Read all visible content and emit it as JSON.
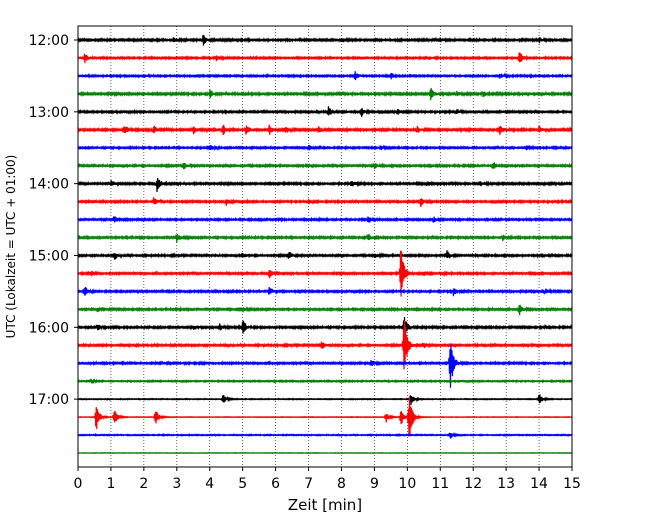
{
  "chart_data": {
    "type": "line",
    "title": "",
    "xlabel": "Zeit  [min]",
    "ylabel": "UTC (Lokalzeit = UTC + 01:00)",
    "xlim": [
      0,
      15
    ],
    "x_ticks": [
      0,
      1,
      2,
      3,
      4,
      5,
      6,
      7,
      8,
      9,
      10,
      11,
      12,
      13,
      14,
      15
    ],
    "x_tick_labels": [
      "0",
      "1",
      "2",
      "3",
      "4",
      "5",
      "6",
      "7",
      "8",
      "9",
      "10",
      "11",
      "12",
      "13",
      "14",
      "15"
    ],
    "y_tick_labels": [
      "12:00",
      "13:00",
      "14:00",
      "15:00",
      "16:00",
      "17:00"
    ],
    "grid": "vertical-dotted",
    "colors": [
      "#000000",
      "#ff0000",
      "#0000ff",
      "#008000"
    ],
    "traces": [
      {
        "start": "12:00",
        "color": "#000000",
        "noise": 0.32,
        "events": [
          [
            2.9,
            1.2
          ],
          [
            3.8,
            2.2
          ],
          [
            8.0,
            1.0
          ],
          [
            11.0,
            1.0
          ],
          [
            14.0,
            1.1
          ]
        ]
      },
      {
        "start": "12:15",
        "color": "#ff0000",
        "noise": 0.28,
        "events": [
          [
            0.2,
            2.0
          ],
          [
            13.4,
            3.0
          ],
          [
            4.2,
            1.0
          ]
        ]
      },
      {
        "start": "12:30",
        "color": "#0000ff",
        "noise": 0.28,
        "events": [
          [
            2.0,
            0.9
          ],
          [
            8.4,
            2.0
          ],
          [
            9.5,
            1.2
          ],
          [
            12.8,
            1.0
          ]
        ]
      },
      {
        "start": "12:45",
        "color": "#008000",
        "noise": 0.34,
        "events": [
          [
            4.0,
            2.0
          ],
          [
            10.7,
            2.5
          ],
          [
            11.5,
            0.9
          ],
          [
            12.3,
            1.0
          ]
        ]
      },
      {
        "start": "13:00",
        "color": "#000000",
        "noise": 0.3,
        "events": [
          [
            7.6,
            2.2
          ],
          [
            8.6,
            2.0
          ],
          [
            9.7,
            1.3
          ],
          [
            11.5,
            1.0
          ]
        ]
      },
      {
        "start": "13:15",
        "color": "#ff0000",
        "noise": 0.34,
        "events": [
          [
            1.4,
            2.3
          ],
          [
            2.3,
            1.6
          ],
          [
            3.5,
            1.6
          ],
          [
            4.4,
            2.2
          ],
          [
            5.1,
            1.8
          ],
          [
            5.8,
            2.2
          ],
          [
            6.3,
            1.6
          ],
          [
            7.3,
            1.4
          ],
          [
            10.3,
            1.3
          ],
          [
            12.8,
            2.3
          ],
          [
            14.0,
            1.6
          ]
        ]
      },
      {
        "start": "13:30",
        "color": "#0000ff",
        "noise": 0.28,
        "events": [
          [
            4.0,
            1.3
          ],
          [
            7.0,
            1.4
          ],
          [
            9.2,
            1.0
          ],
          [
            13.6,
            0.9
          ]
        ]
      },
      {
        "start": "13:45",
        "color": "#008000",
        "noise": 0.3,
        "events": [
          [
            3.2,
            1.6
          ],
          [
            9.0,
            1.2
          ],
          [
            12.6,
            1.8
          ]
        ]
      },
      {
        "start": "14:00",
        "color": "#000000",
        "noise": 0.32,
        "events": [
          [
            1.0,
            1.3
          ],
          [
            2.4,
            3.0
          ],
          [
            8.3,
            1.6
          ],
          [
            10.6,
            1.0
          ],
          [
            12.2,
            1.0
          ]
        ]
      },
      {
        "start": "14:15",
        "color": "#ff0000",
        "noise": 0.3,
        "events": [
          [
            2.3,
            2.0
          ],
          [
            4.5,
            1.4
          ],
          [
            7.0,
            1.0
          ],
          [
            10.4,
            1.9
          ]
        ]
      },
      {
        "start": "14:30",
        "color": "#0000ff",
        "noise": 0.3,
        "events": [
          [
            1.1,
            1.3
          ],
          [
            8.8,
            1.6
          ],
          [
            10.8,
            1.0
          ]
        ]
      },
      {
        "start": "14:45",
        "color": "#008000",
        "noise": 0.3,
        "events": [
          [
            3.0,
            2.0
          ],
          [
            8.8,
            1.6
          ],
          [
            12.9,
            1.0
          ]
        ]
      },
      {
        "start": "15:00",
        "color": "#000000",
        "noise": 0.3,
        "events": [
          [
            1.1,
            1.7
          ],
          [
            5.0,
            1.2
          ],
          [
            6.4,
            1.7
          ],
          [
            9.0,
            1.0
          ],
          [
            11.2,
            1.9
          ]
        ]
      },
      {
        "start": "15:15",
        "color": "#ff0000",
        "noise": 0.3,
        "events": [
          [
            0.4,
            1.0
          ],
          [
            5.8,
            2.0
          ],
          [
            9.8,
            12.0
          ],
          [
            10.5,
            1.0
          ],
          [
            11.0,
            1.0
          ]
        ]
      },
      {
        "start": "15:30",
        "color": "#0000ff",
        "noise": 0.3,
        "events": [
          [
            0.2,
            2.5
          ],
          [
            5.8,
            2.0
          ],
          [
            11.4,
            1.8
          ],
          [
            14.2,
            1.0
          ]
        ]
      },
      {
        "start": "15:45",
        "color": "#008000",
        "noise": 0.3,
        "events": [
          [
            0.6,
            1.0
          ],
          [
            13.4,
            2.3
          ],
          [
            5.0,
            0.9
          ]
        ]
      },
      {
        "start": "16:00",
        "color": "#000000",
        "noise": 0.32,
        "events": [
          [
            0.6,
            1.5
          ],
          [
            3.5,
            1.0
          ],
          [
            4.3,
            1.5
          ],
          [
            5.0,
            3.2
          ],
          [
            9.9,
            5.0
          ]
        ]
      },
      {
        "start": "16:15",
        "color": "#ff0000",
        "noise": 0.3,
        "events": [
          [
            7.4,
            1.9
          ],
          [
            9.9,
            13.0
          ],
          [
            10.5,
            1.2
          ]
        ]
      },
      {
        "start": "16:30",
        "color": "#0000ff",
        "noise": 0.3,
        "events": [
          [
            8.9,
            1.6
          ],
          [
            11.3,
            11.0
          ]
        ]
      },
      {
        "start": "16:45",
        "color": "#008000",
        "noise": 0.22,
        "events": [
          [
            0.4,
            0.7
          ]
        ]
      },
      {
        "start": "17:00",
        "color": "#000000",
        "noise": 0.15,
        "events": [
          [
            4.4,
            2.0
          ],
          [
            10.1,
            3.0
          ],
          [
            14.0,
            2.5
          ]
        ]
      },
      {
        "start": "17:15",
        "color": "#ff0000",
        "noise": 0.1,
        "events": [
          [
            0.55,
            6.0
          ],
          [
            1.1,
            4.0
          ],
          [
            2.35,
            4.0
          ],
          [
            9.35,
            2.2
          ],
          [
            9.8,
            4.0
          ],
          [
            10.05,
            11.0
          ]
        ]
      },
      {
        "start": "17:30",
        "color": "#0000ff",
        "noise": 0.18,
        "events": [
          [
            11.3,
            1.4
          ]
        ]
      },
      {
        "start": "17:45",
        "color": "#008000",
        "noise": 0.08,
        "events": []
      }
    ]
  }
}
